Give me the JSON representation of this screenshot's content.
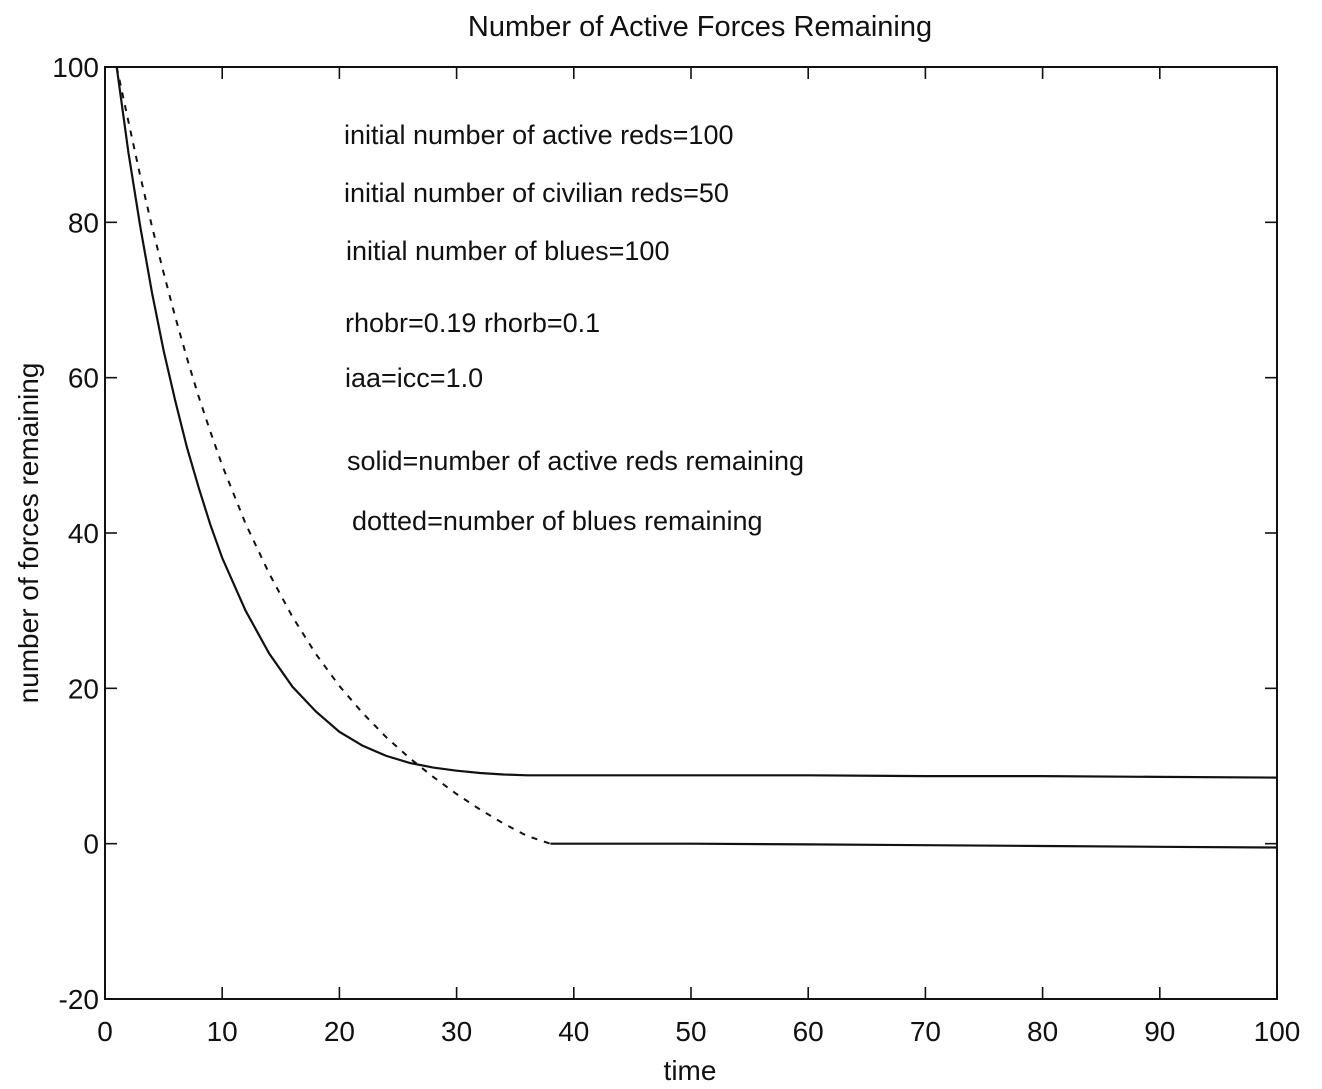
{
  "chart_data": {
    "type": "line",
    "title": "Number of Active Forces Remaining",
    "xlabel": "time",
    "ylabel": "number of forces remaining",
    "xlim": [
      0,
      100
    ],
    "ylim": [
      -20,
      100
    ],
    "xticks": [
      0,
      10,
      20,
      30,
      40,
      50,
      60,
      70,
      80,
      90,
      100
    ],
    "yticks": [
      -20,
      0,
      20,
      40,
      60,
      80,
      100
    ],
    "grid": false,
    "annotations": [
      "initial number of active reds=100",
      "initial number of civilian reds=50",
      "initial number of blues=100",
      "rhobr=0.19 rhorb=0.1",
      "iaa=icc=1.0",
      "solid=number of active reds remaining",
      "dotted=number of blues remaining"
    ],
    "series": [
      {
        "style": "solid",
        "x": [
          1,
          2,
          3,
          4,
          5,
          6,
          7,
          8,
          9,
          10,
          12,
          14,
          16,
          18,
          20,
          22,
          24,
          26,
          28,
          30,
          32,
          34,
          36,
          38,
          40,
          50,
          60,
          70,
          80,
          90,
          100
        ],
        "y": [
          100,
          89,
          79.5,
          71,
          63.5,
          57,
          51,
          45.8,
          41,
          36.8,
          30,
          24.5,
          20.2,
          17,
          14.4,
          12.6,
          11.3,
          10.4,
          9.8,
          9.4,
          9.1,
          8.9,
          8.8,
          8.8,
          8.8,
          8.8,
          8.8,
          8.7,
          8.7,
          8.6,
          8.5
        ]
      },
      {
        "style": "dotted",
        "x": [
          1,
          2,
          3,
          4,
          5,
          6,
          7,
          8,
          9,
          10,
          12,
          14,
          16,
          18,
          20,
          22,
          24,
          26,
          28,
          30,
          32,
          34,
          36,
          38
        ],
        "y": [
          100,
          93,
          86,
          79.5,
          73.5,
          67.8,
          62.5,
          57.5,
          53,
          48.7,
          41.2,
          34.8,
          29.2,
          24.4,
          20.3,
          16.8,
          13.7,
          11,
          8.6,
          6.4,
          4.4,
          2.6,
          1,
          0
        ]
      },
      {
        "style": "solid",
        "x": [
          38,
          50,
          60,
          70,
          80,
          90,
          100
        ],
        "y": [
          0,
          0,
          -0.1,
          -0.2,
          -0.3,
          -0.4,
          -0.5
        ]
      }
    ]
  }
}
